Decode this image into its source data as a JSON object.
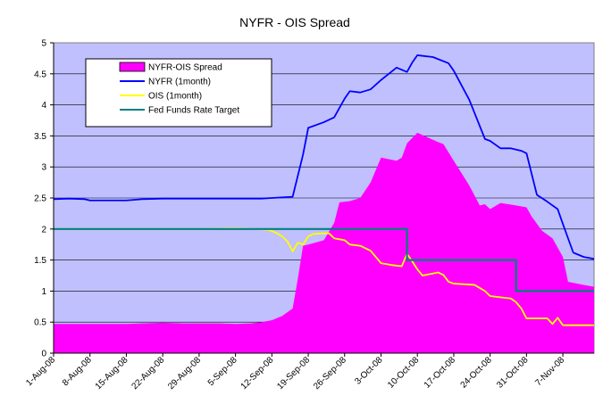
{
  "chart_data": {
    "type": "line",
    "title": "NYFR - OIS Spread",
    "xlabel": "",
    "ylabel": "",
    "ylim": [
      0,
      5
    ],
    "yticks": [
      "0",
      "0.5",
      "1",
      "1.5",
      "2",
      "2.5",
      "3",
      "3.5",
      "4",
      "4.5",
      "5"
    ],
    "xlim": [
      "2008-08-01",
      "2008-11-13"
    ],
    "xtick_dates": [
      "2008-08-01",
      "2008-08-08",
      "2008-08-15",
      "2008-08-22",
      "2008-08-29",
      "2008-09-05",
      "2008-09-12",
      "2008-09-19",
      "2008-09-26",
      "2008-10-03",
      "2008-10-10",
      "2008-10-17",
      "2008-10-24",
      "2008-10-31",
      "2008-11-07"
    ],
    "xtick_labels": [
      "1-Aug-08",
      "8-Aug-08",
      "15-Aug-08",
      "22-Aug-08",
      "29-Aug-08",
      "5-Sep-08",
      "12-Sep-08",
      "19-Sep-08",
      "26-Sep-08",
      "3-Oct-08",
      "10-Oct-08",
      "17-Oct-08",
      "24-Oct-08",
      "31-Oct-08",
      "7-Nov-08"
    ],
    "grid": "horizontal",
    "legend_position": "top-left",
    "plot_background": "#C0C0FF",
    "series": [
      {
        "name": "NYFR-OIS Spread",
        "type": "area",
        "color": "#FF00FF",
        "points": [
          [
            "2008-08-01",
            0.47
          ],
          [
            "2008-08-08",
            0.47
          ],
          [
            "2008-08-15",
            0.47
          ],
          [
            "2008-08-18",
            0.48
          ],
          [
            "2008-08-22",
            0.49
          ],
          [
            "2008-08-26",
            0.48
          ],
          [
            "2008-08-29",
            0.48
          ],
          [
            "2008-09-02",
            0.48
          ],
          [
            "2008-09-05",
            0.47
          ],
          [
            "2008-09-08",
            0.48
          ],
          [
            "2008-09-10",
            0.5
          ],
          [
            "2008-09-12",
            0.53
          ],
          [
            "2008-09-14",
            0.6
          ],
          [
            "2008-09-16",
            0.72
          ],
          [
            "2008-09-17",
            1.2
          ],
          [
            "2008-09-18",
            1.73
          ],
          [
            "2008-09-19",
            1.75
          ],
          [
            "2008-09-22",
            1.82
          ],
          [
            "2008-09-24",
            2.1
          ],
          [
            "2008-09-25",
            2.43
          ],
          [
            "2008-09-27",
            2.45
          ],
          [
            "2008-09-29",
            2.5
          ],
          [
            "2008-10-01",
            2.75
          ],
          [
            "2008-10-03",
            3.15
          ],
          [
            "2008-10-06",
            3.1
          ],
          [
            "2008-10-07",
            3.15
          ],
          [
            "2008-10-08",
            3.38
          ],
          [
            "2008-10-10",
            3.55
          ],
          [
            "2008-10-14",
            3.4
          ],
          [
            "2008-10-15",
            3.37
          ],
          [
            "2008-10-17",
            3.1
          ],
          [
            "2008-10-20",
            2.7
          ],
          [
            "2008-10-22",
            2.38
          ],
          [
            "2008-10-23",
            2.4
          ],
          [
            "2008-10-24",
            2.32
          ],
          [
            "2008-10-26",
            2.42
          ],
          [
            "2008-10-29",
            2.38
          ],
          [
            "2008-10-31",
            2.35
          ],
          [
            "2008-11-01",
            2.2
          ],
          [
            "2008-11-03",
            1.97
          ],
          [
            "2008-11-05",
            1.85
          ],
          [
            "2008-11-06",
            1.7
          ],
          [
            "2008-11-07",
            1.55
          ],
          [
            "2008-11-08",
            1.15
          ],
          [
            "2008-11-11",
            1.1
          ],
          [
            "2008-11-13",
            1.07
          ]
        ]
      },
      {
        "name": "NYFR (1month)",
        "type": "line",
        "color": "#0000FF",
        "points": [
          [
            "2008-08-01",
            2.48
          ],
          [
            "2008-08-04",
            2.49
          ],
          [
            "2008-08-07",
            2.48
          ],
          [
            "2008-08-08",
            2.46
          ],
          [
            "2008-08-15",
            2.46
          ],
          [
            "2008-08-18",
            2.48
          ],
          [
            "2008-08-22",
            2.49
          ],
          [
            "2008-08-29",
            2.49
          ],
          [
            "2008-09-05",
            2.49
          ],
          [
            "2008-09-10",
            2.49
          ],
          [
            "2008-09-12",
            2.5
          ],
          [
            "2008-09-16",
            2.52
          ],
          [
            "2008-09-18",
            3.2
          ],
          [
            "2008-09-19",
            3.63
          ],
          [
            "2008-09-22",
            3.72
          ],
          [
            "2008-09-24",
            3.8
          ],
          [
            "2008-09-26",
            4.1
          ],
          [
            "2008-09-27",
            4.22
          ],
          [
            "2008-09-29",
            4.2
          ],
          [
            "2008-10-01",
            4.25
          ],
          [
            "2008-10-03",
            4.4
          ],
          [
            "2008-10-06",
            4.6
          ],
          [
            "2008-10-08",
            4.53
          ],
          [
            "2008-10-09",
            4.68
          ],
          [
            "2008-10-10",
            4.8
          ],
          [
            "2008-10-13",
            4.77
          ],
          [
            "2008-10-16",
            4.67
          ],
          [
            "2008-10-17",
            4.55
          ],
          [
            "2008-10-20",
            4.08
          ],
          [
            "2008-10-23",
            3.45
          ],
          [
            "2008-10-24",
            3.42
          ],
          [
            "2008-10-26",
            3.3
          ],
          [
            "2008-10-28",
            3.3
          ],
          [
            "2008-10-30",
            3.26
          ],
          [
            "2008-10-31",
            3.22
          ],
          [
            "2008-11-02",
            2.55
          ],
          [
            "2008-11-04",
            2.44
          ],
          [
            "2008-11-06",
            2.32
          ],
          [
            "2008-11-07",
            2.08
          ],
          [
            "2008-11-09",
            1.62
          ],
          [
            "2008-11-11",
            1.55
          ],
          [
            "2008-11-13",
            1.52
          ]
        ]
      },
      {
        "name": "OIS (1month)",
        "type": "line",
        "color": "#FFFF00",
        "points": [
          [
            "2008-08-01",
            2.0
          ],
          [
            "2008-08-15",
            2.0
          ],
          [
            "2008-08-29",
            2.0
          ],
          [
            "2008-09-05",
            2.01
          ],
          [
            "2008-09-11",
            1.99
          ],
          [
            "2008-09-12",
            1.97
          ],
          [
            "2008-09-13",
            1.93
          ],
          [
            "2008-09-14",
            1.88
          ],
          [
            "2008-09-15",
            1.8
          ],
          [
            "2008-09-16",
            1.64
          ],
          [
            "2008-09-17",
            1.78
          ],
          [
            "2008-09-18",
            1.75
          ],
          [
            "2008-09-19",
            1.88
          ],
          [
            "2008-09-20",
            1.92
          ],
          [
            "2008-09-22",
            1.93
          ],
          [
            "2008-09-23",
            1.93
          ],
          [
            "2008-09-24",
            1.85
          ],
          [
            "2008-09-26",
            1.82
          ],
          [
            "2008-09-27",
            1.75
          ],
          [
            "2008-09-29",
            1.73
          ],
          [
            "2008-10-01",
            1.65
          ],
          [
            "2008-10-03",
            1.45
          ],
          [
            "2008-10-05",
            1.42
          ],
          [
            "2008-10-07",
            1.4
          ],
          [
            "2008-10-08",
            1.6
          ],
          [
            "2008-10-09",
            1.48
          ],
          [
            "2008-10-10",
            1.35
          ],
          [
            "2008-10-11",
            1.25
          ],
          [
            "2008-10-14",
            1.3
          ],
          [
            "2008-10-15",
            1.26
          ],
          [
            "2008-10-16",
            1.15
          ],
          [
            "2008-10-17",
            1.12
          ],
          [
            "2008-10-21",
            1.1
          ],
          [
            "2008-10-23",
            1.0
          ],
          [
            "2008-10-24",
            0.92
          ],
          [
            "2008-10-28",
            0.88
          ],
          [
            "2008-10-29",
            0.82
          ],
          [
            "2008-10-30",
            0.72
          ],
          [
            "2008-10-31",
            0.56
          ],
          [
            "2008-11-04",
            0.56
          ],
          [
            "2008-11-05",
            0.47
          ],
          [
            "2008-11-06",
            0.57
          ],
          [
            "2008-11-07",
            0.45
          ],
          [
            "2008-11-09",
            0.45
          ],
          [
            "2008-11-13",
            0.45
          ]
        ]
      },
      {
        "name": "Fed Funds Rate Target",
        "type": "step",
        "color": "#008080",
        "points": [
          [
            "2008-08-01",
            2.0
          ],
          [
            "2008-10-08",
            2.0
          ],
          [
            "2008-10-08",
            1.5
          ],
          [
            "2008-10-29",
            1.5
          ],
          [
            "2008-10-29",
            1.0
          ],
          [
            "2008-11-13",
            1.0
          ]
        ]
      }
    ]
  }
}
